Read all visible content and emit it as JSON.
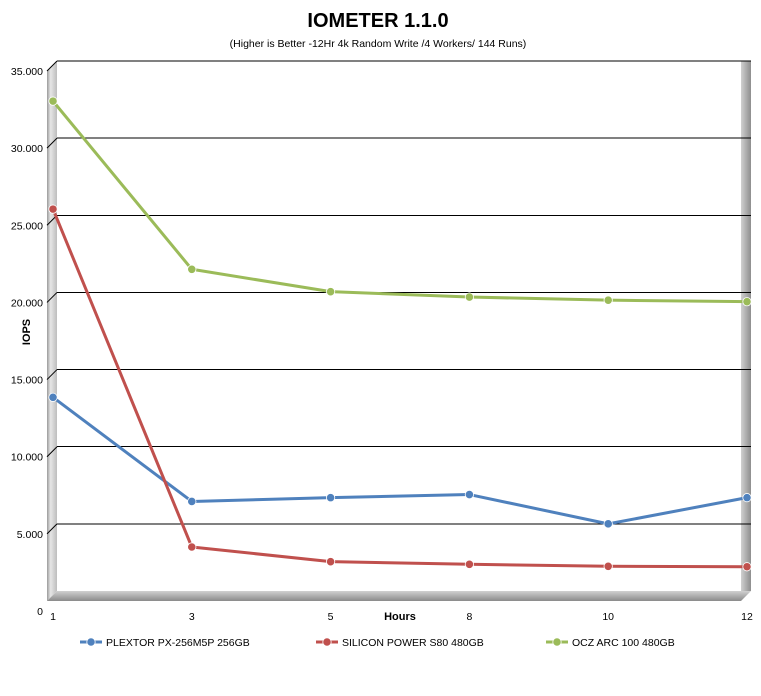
{
  "chart_data": {
    "type": "line",
    "title": "IOMETER 1.1.0",
    "subtitle": "(Higher is Better -12Hr 4k Random Write /4 Workers/ 144 Runs)",
    "xlabel": "Hours",
    "ylabel": "IOPS",
    "x": [
      "1",
      "3",
      "5",
      "8",
      "10",
      "12"
    ],
    "ylim": [
      0,
      35000
    ],
    "yticks": [
      {
        "value": 0,
        "label": "0"
      },
      {
        "value": 5000,
        "label": "5.000"
      },
      {
        "value": 10000,
        "label": "10.000"
      },
      {
        "value": 15000,
        "label": "15.000"
      },
      {
        "value": 20000,
        "label": "20.000"
      },
      {
        "value": 25000,
        "label": "25.000"
      },
      {
        "value": 30000,
        "label": "30.000"
      },
      {
        "value": 35000,
        "label": "35.000"
      }
    ],
    "grid": true,
    "legend_position": "bottom",
    "series": [
      {
        "name": "PLEXTOR PX-256M5P 256GB",
        "color": "#4f81bd",
        "values": [
          13200,
          6450,
          6700,
          6900,
          5000,
          6700
        ]
      },
      {
        "name": "SILICON POWER S80 480GB",
        "color": "#c0504d",
        "values": [
          25400,
          3500,
          2550,
          2380,
          2250,
          2220
        ]
      },
      {
        "name": "OCZ ARC 100 480GB",
        "color": "#9bbb59",
        "values": [
          32400,
          21500,
          20050,
          19700,
          19500,
          19400
        ]
      }
    ]
  }
}
